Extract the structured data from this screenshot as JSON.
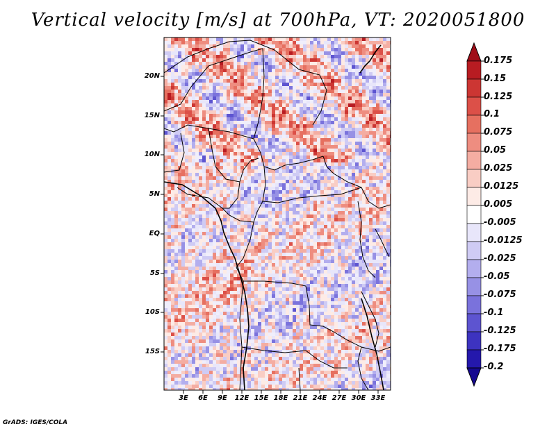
{
  "title": "Vertical velocity [m/s] at 700hPa, VT: 2020051800",
  "footer": "GrADS: IGES/COLA",
  "lat_labels": [
    "20N",
    "15N",
    "10N",
    "5N",
    "EQ",
    "5S",
    "10S",
    "15S"
  ],
  "lon_labels": [
    "3E",
    "6E",
    "9E",
    "12E",
    "15E",
    "18E",
    "21E",
    "24E",
    "27E",
    "30E",
    "33E"
  ],
  "colorbar": {
    "labels": [
      "0.175",
      "0.15",
      "0.125",
      "0.1",
      "0.075",
      "0.05",
      "0.025",
      "0.0125",
      "0.005",
      "-0.005",
      "-0.0125",
      "-0.025",
      "-0.05",
      "-0.075",
      "-0.1",
      "-0.125",
      "-0.175",
      "-0.2"
    ],
    "colors": [
      "#a00d18",
      "#b81c22",
      "#cc3633",
      "#dc5048",
      "#e67060",
      "#ee8d80",
      "#f4ada2",
      "#f9cdc4",
      "#fdebe6",
      "#ffffff",
      "#e8e6fa",
      "#cfcbf4",
      "#b3aeee",
      "#9791e5",
      "#7a72dc",
      "#5d54d0",
      "#3d33c0",
      "#2418ac",
      "#160890"
    ]
  }
}
